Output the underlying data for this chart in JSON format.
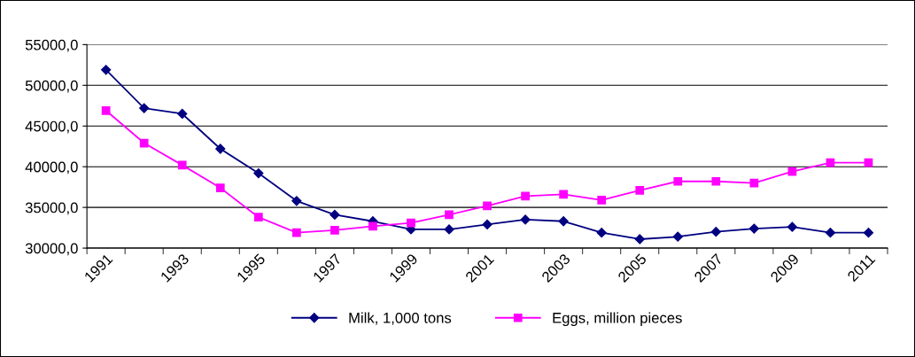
{
  "chart_data": {
    "type": "line",
    "categories": [
      "1991",
      null,
      "1993",
      null,
      "1995",
      null,
      "1997",
      null,
      "1999",
      null,
      "2001",
      null,
      "2003",
      null,
      "2005",
      null,
      "2007",
      null,
      "2009",
      null,
      "2011"
    ],
    "series": [
      {
        "name": "Milk, 1,000 tons",
        "color": "#000080",
        "marker": "diamond",
        "values": [
          51900,
          47200,
          46500,
          42200,
          39200,
          35800,
          34100,
          33300,
          32300,
          32300,
          32900,
          33500,
          33300,
          31900,
          31100,
          31400,
          32000,
          32400,
          32600,
          31900,
          31900
        ]
      },
      {
        "name": "Eggs, million pieces",
        "color": "#ff00ff",
        "marker": "square",
        "values": [
          46900,
          42900,
          40200,
          37400,
          33800,
          31900,
          32200,
          32700,
          33100,
          34100,
          35200,
          36400,
          36600,
          35900,
          37100,
          38200,
          38200,
          38000,
          39400,
          40500,
          40500
        ]
      }
    ],
    "ylim": [
      30000,
      55000
    ],
    "yticks": [
      {
        "value": 30000,
        "label": "30000,0"
      },
      {
        "value": 35000,
        "label": "35000,0"
      },
      {
        "value": 40000,
        "label": "40000,0"
      },
      {
        "value": 45000,
        "label": "45000,0"
      },
      {
        "value": 50000,
        "label": "50000,0"
      },
      {
        "value": 55000,
        "label": "55000,0"
      }
    ],
    "grid": "y",
    "legend": "bottom",
    "line_style": "solid"
  }
}
